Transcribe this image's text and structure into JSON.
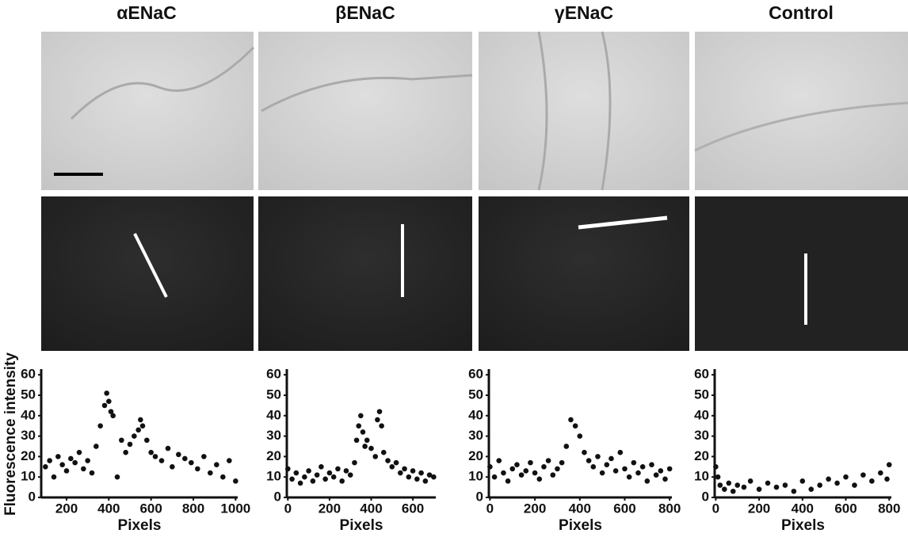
{
  "ylabel": "Fluorescence intensity",
  "chart_data": [
    {
      "type": "scatter",
      "title": "αENaC",
      "xlabel": "Pixels",
      "color": "#111111",
      "x": [
        100,
        120,
        140,
        160,
        180,
        200,
        220,
        240,
        260,
        280,
        300,
        320,
        340,
        360,
        380,
        390,
        400,
        410,
        420,
        440,
        460,
        480,
        500,
        520,
        540,
        550,
        560,
        580,
        600,
        620,
        650,
        680,
        700,
        730,
        760,
        790,
        820,
        850,
        880,
        910,
        940,
        970,
        1000
      ],
      "values": [
        15,
        18,
        10,
        20,
        16,
        13,
        19,
        17,
        22,
        14,
        18,
        12,
        25,
        35,
        45,
        51,
        47,
        42,
        40,
        10,
        28,
        22,
        26,
        30,
        33,
        38,
        35,
        28,
        22,
        20,
        18,
        24,
        15,
        21,
        19,
        17,
        14,
        20,
        12,
        16,
        10,
        18,
        8
      ],
      "xlim": [
        80,
        1010
      ],
      "xticks": [
        200,
        400,
        600,
        800,
        1000
      ],
      "ylim": [
        0,
        62
      ],
      "yticks": [
        0,
        10,
        20,
        30,
        40,
        50,
        60
      ]
    },
    {
      "type": "scatter",
      "title": "βENaC",
      "xlabel": "Pixels",
      "color": "#111111",
      "x": [
        0,
        20,
        40,
        60,
        80,
        100,
        120,
        140,
        160,
        180,
        200,
        220,
        240,
        260,
        280,
        300,
        320,
        330,
        340,
        350,
        360,
        370,
        380,
        400,
        420,
        430,
        440,
        450,
        460,
        480,
        500,
        520,
        540,
        560,
        580,
        600,
        620,
        640,
        660,
        680,
        700
      ],
      "values": [
        14,
        9,
        12,
        7,
        10,
        13,
        8,
        11,
        15,
        9,
        12,
        10,
        14,
        8,
        13,
        11,
        17,
        28,
        35,
        40,
        32,
        25,
        28,
        24,
        20,
        38,
        42,
        35,
        22,
        18,
        15,
        17,
        12,
        14,
        10,
        13,
        9,
        12,
        8,
        11,
        10
      ],
      "xlim": [
        -5,
        710
      ],
      "xticks": [
        0,
        200,
        400,
        600
      ],
      "ylim": [
        0,
        62
      ],
      "yticks": [
        0,
        10,
        20,
        30,
        40,
        50,
        60
      ]
    },
    {
      "type": "scatter",
      "title": "γENaC",
      "xlabel": "Pixels",
      "color": "#111111",
      "x": [
        0,
        20,
        40,
        60,
        80,
        100,
        120,
        140,
        160,
        180,
        200,
        220,
        240,
        260,
        280,
        300,
        320,
        340,
        360,
        380,
        400,
        420,
        440,
        460,
        480,
        500,
        520,
        540,
        560,
        580,
        600,
        620,
        640,
        660,
        680,
        700,
        720,
        740,
        760,
        780,
        800
      ],
      "values": [
        15,
        10,
        18,
        12,
        8,
        14,
        16,
        11,
        13,
        17,
        12,
        9,
        15,
        18,
        11,
        14,
        17,
        25,
        38,
        35,
        30,
        22,
        18,
        15,
        20,
        12,
        16,
        19,
        13,
        22,
        14,
        10,
        17,
        12,
        15,
        8,
        16,
        11,
        13,
        9,
        14
      ],
      "xlim": [
        -5,
        810
      ],
      "xticks": [
        0,
        200,
        400,
        600,
        800
      ],
      "ylim": [
        0,
        62
      ],
      "yticks": [
        0,
        10,
        20,
        30,
        40,
        50,
        60
      ]
    },
    {
      "type": "scatter",
      "title": "Control",
      "xlabel": "Pixels",
      "color": "#111111",
      "x": [
        0,
        10,
        20,
        40,
        60,
        80,
        100,
        130,
        160,
        200,
        240,
        280,
        320,
        360,
        400,
        440,
        480,
        520,
        560,
        600,
        640,
        680,
        720,
        760,
        790,
        800
      ],
      "values": [
        15,
        10,
        6,
        4,
        7,
        3,
        6,
        5,
        8,
        4,
        7,
        5,
        6,
        3,
        8,
        4,
        6,
        9,
        7,
        10,
        6,
        11,
        8,
        12,
        9,
        16
      ],
      "xlim": [
        -5,
        810
      ],
      "xticks": [
        0,
        200,
        400,
        600,
        800
      ],
      "ylim": [
        0,
        62
      ],
      "yticks": [
        0,
        10,
        20,
        30,
        40,
        50,
        60
      ]
    }
  ]
}
